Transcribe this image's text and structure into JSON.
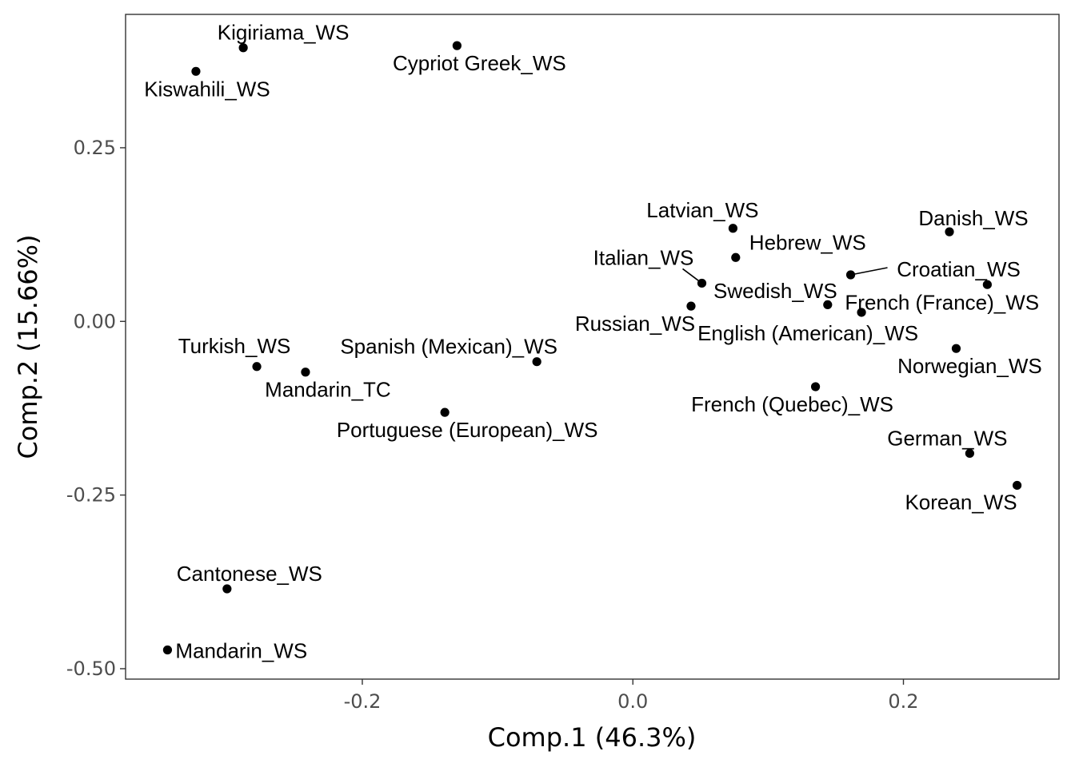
{
  "chart_data": {
    "type": "scatter",
    "title": "",
    "xlabel": "Comp.1 (46.3%)",
    "ylabel": "Comp.2 (15.66%)",
    "xlim": [
      -0.375,
      0.315
    ],
    "ylim": [
      -0.515,
      0.442
    ],
    "x_ticks": [
      -0.2,
      0.0,
      0.2
    ],
    "x_tick_labels": [
      "-0.2",
      "0.0",
      "0.2"
    ],
    "y_ticks": [
      0.25,
      0.0,
      -0.25,
      -0.5
    ],
    "y_tick_labels": [
      "0.25",
      "0.00",
      "-0.25",
      "-0.50"
    ],
    "grid": false,
    "legend": "none",
    "colors": {
      "point": "#000000",
      "panel_border": "#333333",
      "tick_text": "#4d4d4d"
    },
    "points": [
      {
        "label": "Kigiriama_WS",
        "x": -0.288,
        "y": 0.394
      },
      {
        "label": "Kiswahili_WS",
        "x": -0.323,
        "y": 0.36
      },
      {
        "label": "Cypriot Greek_WS",
        "x": -0.13,
        "y": 0.397
      },
      {
        "label": "Latvian_WS",
        "x": 0.074,
        "y": 0.134
      },
      {
        "label": "Hebrew_WS",
        "x": 0.076,
        "y": 0.092
      },
      {
        "label": "Danish_WS",
        "x": 0.234,
        "y": 0.129
      },
      {
        "label": "Italian_WS",
        "x": 0.051,
        "y": 0.055
      },
      {
        "label": "Croatian_WS",
        "x": 0.161,
        "y": 0.067
      },
      {
        "label": "Swedish_WS",
        "x": 0.262,
        "y": 0.053
      },
      {
        "label": "Russian_WS",
        "x": 0.043,
        "y": 0.022
      },
      {
        "label": "French (France)_WS",
        "x": 0.144,
        "y": 0.024
      },
      {
        "label": "English (American)_WS",
        "x": 0.169,
        "y": 0.013
      },
      {
        "label": "Norwegian_WS",
        "x": 0.239,
        "y": -0.039
      },
      {
        "label": "French (Quebec)_WS",
        "x": 0.135,
        "y": -0.094
      },
      {
        "label": "German_WS",
        "x": 0.249,
        "y": -0.19
      },
      {
        "label": "Korean_WS",
        "x": 0.284,
        "y": -0.236
      },
      {
        "label": "Turkish_WS",
        "x": -0.278,
        "y": -0.065
      },
      {
        "label": "Mandarin_TC",
        "x": -0.242,
        "y": -0.073
      },
      {
        "label": "Spanish (Mexican)_WS",
        "x": -0.071,
        "y": -0.058
      },
      {
        "label": "Portuguese (European)_WS",
        "x": -0.139,
        "y": -0.131
      },
      {
        "label": "Cantonese_WS",
        "x": -0.3,
        "y": -0.385
      },
      {
        "label": "Mandarin_WS",
        "x": -0.344,
        "y": -0.473
      }
    ]
  }
}
